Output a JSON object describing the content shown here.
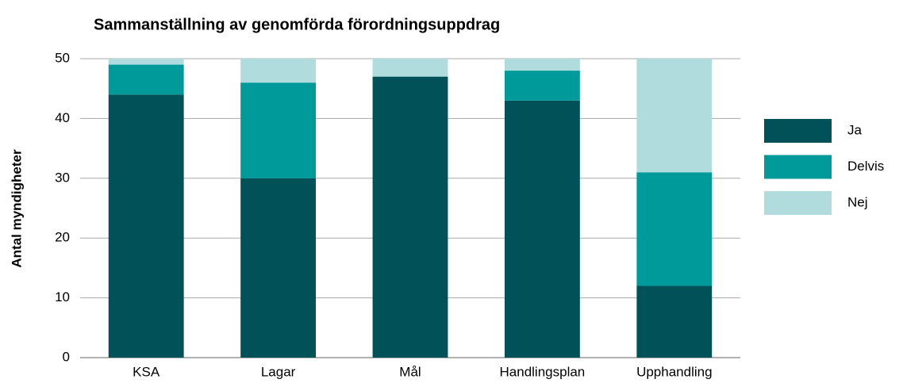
{
  "chart_data": {
    "type": "stacked_bar",
    "title": "Sammanställning av genomförda förordningsuppdrag",
    "y_label": "Antal myndigheter",
    "categories": [
      "KSA",
      "Lagar",
      "Mål",
      "Handlingsplan",
      "Upphandling"
    ],
    "series": [
      {
        "name": "Ja",
        "color": "#005259",
        "values": [
          44,
          30,
          47,
          43,
          12
        ]
      },
      {
        "name": "Delvis",
        "color": "#009a9a",
        "values": [
          5,
          16,
          0,
          5,
          19
        ]
      },
      {
        "name": "Nej",
        "color": "#b0dcdd",
        "values": [
          1,
          4,
          3,
          2,
          19
        ]
      }
    ],
    "ylim": [
      0,
      50
    ],
    "yticks": [
      0,
      10,
      20,
      30,
      40,
      50
    ],
    "grid": true,
    "legend": "right"
  }
}
